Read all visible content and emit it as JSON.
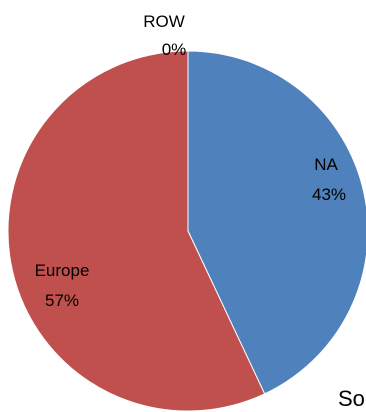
{
  "chart_data": {
    "type": "pie",
    "slices": [
      {
        "label": "NA",
        "percent_label": "43%",
        "value": 43,
        "color": "#4F81BD"
      },
      {
        "label": "Europe",
        "percent_label": "57%",
        "value": 57,
        "color": "#C0504D"
      },
      {
        "label": "ROW",
        "percent_label": "0%",
        "value": 0,
        "color": "#9BBB59"
      }
    ],
    "title": "",
    "legend": "none",
    "start_angle_deg": 0,
    "direction": "clockwise"
  },
  "footer_text": "So"
}
